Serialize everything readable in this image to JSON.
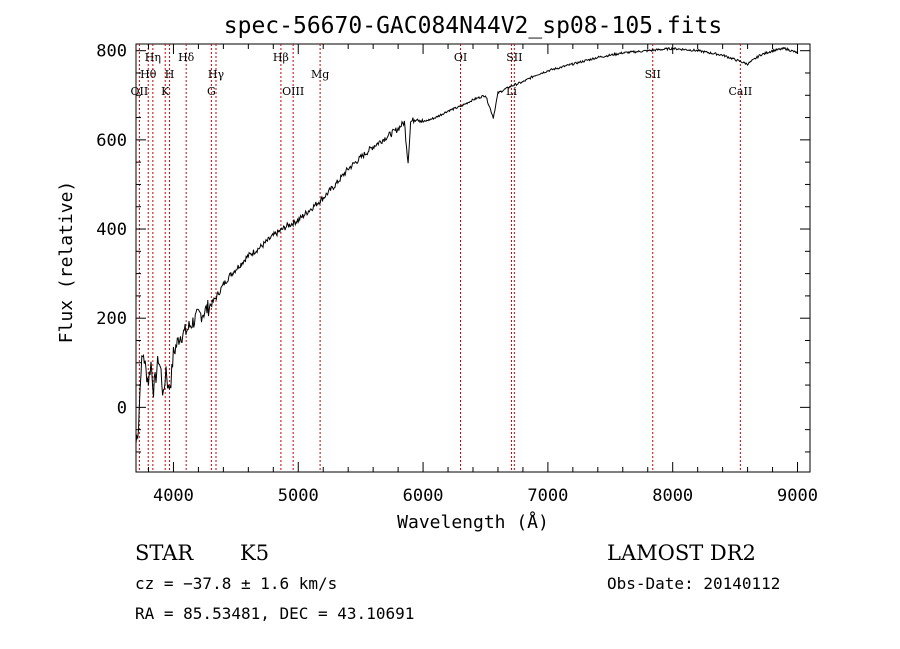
{
  "chart_data": {
    "type": "line",
    "title": "spec-56670-GAC084N44V2_sp08-105.fits",
    "xlabel": "Wavelength (Å)",
    "ylabel": "Flux (relative)",
    "xlim": [
      3700,
      9100
    ],
    "ylim": [
      -145,
      815
    ],
    "x_ticks": [
      4000,
      5000,
      6000,
      7000,
      8000,
      9000
    ],
    "x_tick_labels": [
      "4000",
      "5000",
      "6000",
      "7000",
      "8000",
      "9000"
    ],
    "y_ticks": [
      0,
      200,
      400,
      600,
      800
    ],
    "y_tick_labels": [
      "0",
      "200",
      "400",
      "600",
      "800"
    ],
    "grid": false,
    "series": [
      {
        "x": [
          3700,
          3720,
          3740,
          3760,
          3780,
          3800,
          3820,
          3840,
          3860,
          3880,
          3900,
          3920,
          3940,
          3960,
          3980,
          4000,
          4050,
          4100,
          4150,
          4200,
          4250,
          4300,
          4350,
          4400,
          4450,
          4500,
          4600,
          4700,
          4800,
          4900,
          5000,
          5100,
          5200,
          5300,
          5400,
          5500,
          5600,
          5700,
          5800,
          5850,
          5880,
          5900,
          5950,
          6000,
          6100,
          6200,
          6300,
          6400,
          6500,
          6563,
          6600,
          6700,
          6800,
          6900,
          7000,
          7200,
          7400,
          7600,
          7800,
          8000,
          8200,
          8400,
          8500,
          8600,
          8700,
          8800,
          8900,
          9000
        ],
        "y": [
          -80,
          -40,
          90,
          120,
          80,
          60,
          100,
          40,
          70,
          110,
          80,
          20,
          90,
          40,
          60,
          120,
          160,
          170,
          190,
          205,
          215,
          230,
          250,
          275,
          295,
          310,
          340,
          360,
          385,
          405,
          420,
          445,
          470,
          500,
          535,
          560,
          585,
          605,
          625,
          640,
          550,
          640,
          650,
          640,
          650,
          665,
          675,
          690,
          700,
          650,
          705,
          720,
          730,
          745,
          755,
          770,
          785,
          795,
          800,
          805,
          800,
          790,
          780,
          770,
          790,
          800,
          805,
          795
        ]
      }
    ],
    "line_markers": [
      {
        "label": "OII",
        "wavelength": 3727,
        "row": 3
      },
      {
        "label": "Hθ",
        "wavelength": 3798,
        "row": 2
      },
      {
        "label": "Hη",
        "wavelength": 3835,
        "row": 1
      },
      {
        "label": "K",
        "wavelength": 3934,
        "row": 3
      },
      {
        "label": "H",
        "wavelength": 3969,
        "row": 2
      },
      {
        "label": "Hδ",
        "wavelength": 4102,
        "row": 1
      },
      {
        "label": "G",
        "wavelength": 4304,
        "row": 3
      },
      {
        "label": "Hγ",
        "wavelength": 4341,
        "row": 2
      },
      {
        "label": "Hβ",
        "wavelength": 4861,
        "row": 1
      },
      {
        "label": "OIII",
        "wavelength": 4959,
        "row": 3
      },
      {
        "label": "Mg",
        "wavelength": 5175,
        "row": 2
      },
      {
        "label": "OI",
        "wavelength": 6300,
        "row": 1
      },
      {
        "label": "Li",
        "wavelength": 6708,
        "row": 3
      },
      {
        "label": "SII",
        "wavelength": 6731,
        "row": 1
      },
      {
        "label": "SII",
        "wavelength": 7840,
        "row": 2
      },
      {
        "label": "CaII",
        "wavelength": 8542,
        "row": 3
      }
    ]
  },
  "info": {
    "object_class": "STAR",
    "subclass": "K5",
    "cz": "cz = −37.8 ± 1.6 km/s",
    "coords": "RA =  85.53481, DEC =  43.10691",
    "survey": "LAMOST DR2",
    "obs_date": "Obs-Date: 20140112"
  },
  "colors": {
    "line_marker": "#cc0000",
    "spectrum": "#000000"
  }
}
